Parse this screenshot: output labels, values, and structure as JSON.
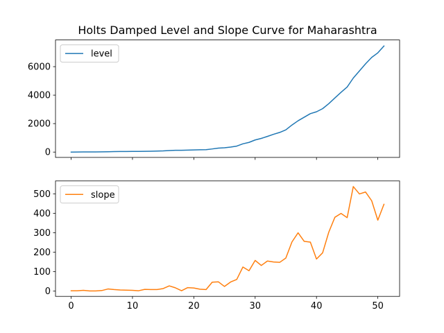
{
  "chart_data": [
    {
      "type": "line",
      "title": "Holts Damped Level and Slope Curve for Maharashtra",
      "xlabel": "",
      "ylabel": "",
      "xlim": [
        -2.55,
        53.55
      ],
      "ylim": [
        -375,
        7875
      ],
      "x_ticks": [
        0,
        10,
        20,
        30,
        40,
        50
      ],
      "x_tick_labels_shown": false,
      "y_ticks": [
        0,
        2000,
        4000,
        6000
      ],
      "y_tick_labels": [
        "0",
        "2000",
        "4000",
        "6000"
      ],
      "legend": {
        "position": "upper-left"
      },
      "grid": false,
      "series": [
        {
          "name": "level",
          "color": "#1f77b4",
          "x": [
            0,
            1,
            2,
            3,
            4,
            5,
            6,
            7,
            8,
            9,
            10,
            11,
            12,
            13,
            14,
            15,
            16,
            17,
            18,
            19,
            20,
            21,
            22,
            23,
            24,
            25,
            26,
            27,
            28,
            29,
            30,
            31,
            32,
            33,
            34,
            35,
            36,
            37,
            38,
            39,
            40,
            41,
            42,
            43,
            44,
            45,
            46,
            47,
            48,
            49,
            50,
            51
          ],
          "values": [
            0,
            5,
            8,
            10,
            12,
            15,
            25,
            32,
            38,
            42,
            46,
            48,
            55,
            60,
            70,
            85,
            110,
            125,
            125,
            140,
            150,
            160,
            170,
            220,
            280,
            300,
            350,
            420,
            580,
            680,
            850,
            960,
            1100,
            1250,
            1380,
            1560,
            1900,
            2200,
            2450,
            2700,
            2830,
            3050,
            3400,
            3800,
            4200,
            4570,
            5200,
            5700,
            6200,
            6650,
            6970,
            7450
          ]
        }
      ]
    },
    {
      "type": "line",
      "title": "",
      "xlabel": "",
      "ylabel": "",
      "xlim": [
        -2.55,
        53.55
      ],
      "ylim": [
        -27,
        567
      ],
      "x_ticks": [
        0,
        10,
        20,
        30,
        40,
        50
      ],
      "x_tick_labels": [
        "0",
        "10",
        "20",
        "30",
        "40",
        "50"
      ],
      "y_ticks": [
        0,
        100,
        200,
        300,
        400,
        500
      ],
      "y_tick_labels": [
        "0",
        "100",
        "200",
        "300",
        "400",
        "500"
      ],
      "legend": {
        "position": "upper-left"
      },
      "grid": false,
      "series": [
        {
          "name": "slope",
          "color": "#ff7f0e",
          "x": [
            0,
            1,
            2,
            3,
            4,
            5,
            6,
            7,
            8,
            9,
            10,
            11,
            12,
            13,
            14,
            15,
            16,
            17,
            18,
            19,
            20,
            21,
            22,
            23,
            24,
            25,
            26,
            27,
            28,
            29,
            30,
            31,
            32,
            33,
            34,
            35,
            36,
            37,
            38,
            39,
            40,
            41,
            42,
            43,
            44,
            45,
            46,
            47,
            48,
            49,
            50,
            51
          ],
          "values": [
            2,
            2,
            4,
            1,
            1,
            3,
            11,
            8,
            6,
            5,
            4,
            2,
            9,
            8,
            8,
            13,
            27,
            17,
            2,
            18,
            16,
            10,
            8,
            46,
            48,
            24,
            47,
            60,
            124,
            105,
            158,
            132,
            155,
            150,
            148,
            170,
            253,
            300,
            256,
            252,
            165,
            197,
            303,
            380,
            400,
            378,
            538,
            500,
            510,
            465,
            365,
            447
          ]
        }
      ]
    }
  ]
}
